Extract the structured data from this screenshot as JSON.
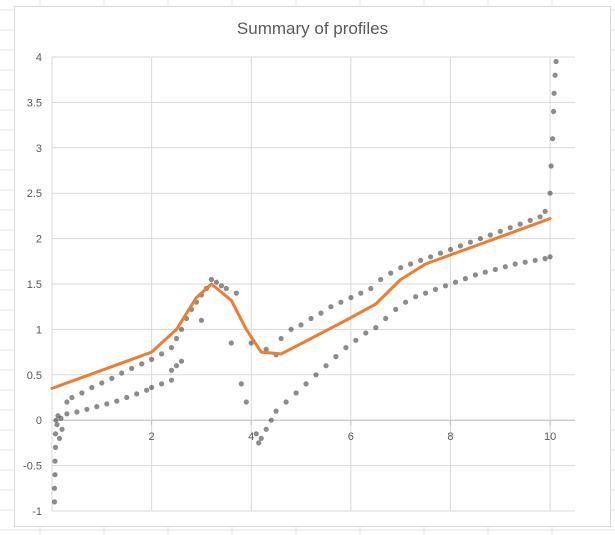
{
  "chart_data": {
    "type": "scatter",
    "title": "Summary of profiles",
    "xlabel": "",
    "ylabel": "",
    "xlim": [
      0,
      10.5
    ],
    "ylim": [
      -1,
      4
    ],
    "x_ticks": [
      "2",
      "4",
      "6",
      "8",
      "10"
    ],
    "x_tick_values": [
      2,
      4,
      6,
      8,
      10
    ],
    "y_ticks": [
      "4",
      "3.5",
      "3",
      "2.5",
      "2",
      "1.5",
      "1",
      "0.5",
      "0",
      "-0.5",
      "-1"
    ],
    "y_tick_values": [
      4,
      3.5,
      3,
      2.5,
      2,
      1.5,
      1,
      0.5,
      0,
      -0.5,
      -1
    ],
    "grid": true,
    "legend": "none",
    "series": [
      {
        "kind": "scatter",
        "color": "#404040",
        "points": [
          [
            0.05,
            -0.9
          ],
          [
            0.05,
            -0.75
          ],
          [
            0.06,
            -0.6
          ],
          [
            0.06,
            -0.45
          ],
          [
            0.07,
            -0.3
          ],
          [
            0.07,
            -0.15
          ],
          [
            0.08,
            0.0
          ],
          [
            0.1,
            -0.05
          ],
          [
            0.12,
            0.05
          ],
          [
            0.15,
            -0.2
          ],
          [
            0.18,
            0.02
          ],
          [
            0.2,
            -0.1
          ],
          [
            0.3,
            0.07
          ],
          [
            0.5,
            0.09
          ],
          [
            0.7,
            0.12
          ],
          [
            0.9,
            0.15
          ],
          [
            1.1,
            0.18
          ],
          [
            1.3,
            0.21
          ],
          [
            1.5,
            0.25
          ],
          [
            1.7,
            0.29
          ],
          [
            1.9,
            0.33
          ],
          [
            2.0,
            0.36
          ],
          [
            2.2,
            0.4
          ],
          [
            2.4,
            0.44
          ],
          [
            0.3,
            0.2
          ],
          [
            0.4,
            0.25
          ],
          [
            0.6,
            0.3
          ],
          [
            0.8,
            0.36
          ],
          [
            1.0,
            0.41
          ],
          [
            1.2,
            0.46
          ],
          [
            1.4,
            0.52
          ],
          [
            1.6,
            0.57
          ],
          [
            1.8,
            0.62
          ],
          [
            2.0,
            0.67
          ],
          [
            2.2,
            0.73
          ],
          [
            2.4,
            0.8
          ],
          [
            2.5,
            0.9
          ],
          [
            2.6,
            1.0
          ],
          [
            2.7,
            1.12
          ],
          [
            2.8,
            1.22
          ],
          [
            2.9,
            1.3
          ],
          [
            3.0,
            1.38
          ],
          [
            3.1,
            1.45
          ],
          [
            3.2,
            1.55
          ],
          [
            3.3,
            1.52
          ],
          [
            3.4,
            1.48
          ],
          [
            3.5,
            1.45
          ],
          [
            2.5,
            0.6
          ],
          [
            2.6,
            0.65
          ],
          [
            2.4,
            0.55
          ],
          [
            3.0,
            1.1
          ],
          [
            3.6,
            0.85
          ],
          [
            3.7,
            1.4
          ],
          [
            3.8,
            0.4
          ],
          [
            3.9,
            0.2
          ],
          [
            4.0,
            0.85
          ],
          [
            4.1,
            -0.15
          ],
          [
            4.15,
            -0.25
          ],
          [
            4.2,
            -0.2
          ],
          [
            4.3,
            -0.1
          ],
          [
            4.4,
            0.0
          ],
          [
            4.5,
            0.1
          ],
          [
            4.7,
            0.2
          ],
          [
            4.9,
            0.3
          ],
          [
            5.1,
            0.4
          ],
          [
            5.3,
            0.5
          ],
          [
            5.5,
            0.6
          ],
          [
            5.7,
            0.7
          ],
          [
            5.9,
            0.8
          ],
          [
            6.1,
            0.88
          ],
          [
            6.3,
            0.96
          ],
          [
            6.5,
            1.02
          ],
          [
            6.7,
            1.12
          ],
          [
            6.9,
            1.22
          ],
          [
            7.1,
            1.3
          ],
          [
            7.3,
            1.36
          ],
          [
            7.5,
            1.4
          ],
          [
            7.7,
            1.44
          ],
          [
            7.9,
            1.48
          ],
          [
            8.1,
            1.52
          ],
          [
            8.3,
            1.56
          ],
          [
            8.5,
            1.6
          ],
          [
            8.7,
            1.63
          ],
          [
            8.9,
            1.66
          ],
          [
            9.1,
            1.69
          ],
          [
            9.3,
            1.72
          ],
          [
            9.5,
            1.74
          ],
          [
            9.7,
            1.76
          ],
          [
            9.9,
            1.78
          ],
          [
            10.0,
            1.8
          ],
          [
            4.3,
            0.78
          ],
          [
            4.5,
            0.72
          ],
          [
            4.6,
            0.9
          ],
          [
            4.8,
            1.0
          ],
          [
            5.0,
            1.05
          ],
          [
            5.2,
            1.12
          ],
          [
            5.4,
            1.18
          ],
          [
            5.6,
            1.25
          ],
          [
            5.8,
            1.3
          ],
          [
            6.0,
            1.35
          ],
          [
            6.2,
            1.4
          ],
          [
            6.4,
            1.45
          ],
          [
            6.6,
            1.55
          ],
          [
            6.8,
            1.62
          ],
          [
            7.0,
            1.68
          ],
          [
            7.2,
            1.72
          ],
          [
            7.4,
            1.76
          ],
          [
            7.6,
            1.8
          ],
          [
            7.8,
            1.84
          ],
          [
            8.0,
            1.88
          ],
          [
            8.2,
            1.92
          ],
          [
            8.4,
            1.96
          ],
          [
            8.6,
            2.0
          ],
          [
            8.8,
            2.04
          ],
          [
            9.0,
            2.08
          ],
          [
            9.2,
            2.12
          ],
          [
            9.4,
            2.16
          ],
          [
            9.6,
            2.2
          ],
          [
            9.8,
            2.24
          ],
          [
            9.9,
            2.3
          ],
          [
            10.0,
            2.5
          ],
          [
            10.02,
            2.8
          ],
          [
            10.05,
            3.1
          ],
          [
            10.07,
            3.4
          ],
          [
            10.08,
            3.6
          ],
          [
            10.1,
            3.8
          ],
          [
            10.12,
            3.95
          ]
        ]
      },
      {
        "kind": "line",
        "color": "#ED7D31",
        "points": [
          [
            0.0,
            0.35
          ],
          [
            0.5,
            0.45
          ],
          [
            1.0,
            0.55
          ],
          [
            1.5,
            0.65
          ],
          [
            2.0,
            0.75
          ],
          [
            2.5,
            1.0
          ],
          [
            2.9,
            1.35
          ],
          [
            3.2,
            1.5
          ],
          [
            3.6,
            1.32
          ],
          [
            3.9,
            1.0
          ],
          [
            4.2,
            0.75
          ],
          [
            4.6,
            0.73
          ],
          [
            5.2,
            0.9
          ],
          [
            5.9,
            1.1
          ],
          [
            6.5,
            1.28
          ],
          [
            7.0,
            1.55
          ],
          [
            7.5,
            1.72
          ],
          [
            8.0,
            1.82
          ],
          [
            8.5,
            1.92
          ],
          [
            9.0,
            2.02
          ],
          [
            9.5,
            2.12
          ],
          [
            10.0,
            2.22
          ]
        ]
      }
    ]
  }
}
